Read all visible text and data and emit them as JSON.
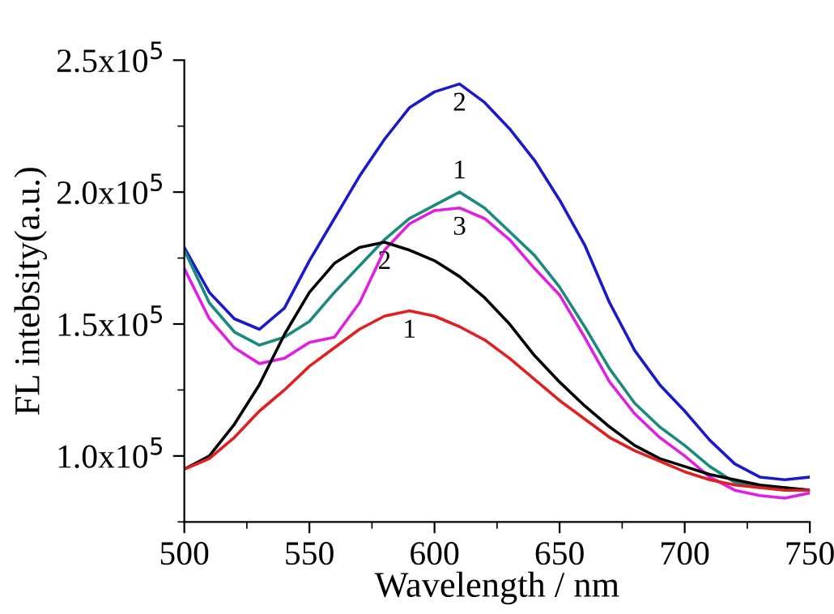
{
  "chart_data": {
    "type": "line",
    "xlabel": "Wavelength / nm",
    "ylabel": "FL intebsity(a.u.)",
    "x": [
      500,
      510,
      520,
      530,
      540,
      550,
      560,
      570,
      580,
      590,
      600,
      610,
      620,
      630,
      640,
      650,
      660,
      670,
      680,
      690,
      700,
      710,
      720,
      730,
      740,
      750
    ],
    "series": [
      {
        "color": "#1a1ac8",
        "values": [
          179000,
          162000,
          152000,
          148000,
          156000,
          174000,
          190000,
          206000,
          220000,
          232000,
          238000,
          241000,
          234000,
          224000,
          212000,
          197000,
          180000,
          158000,
          140000,
          127000,
          117000,
          106000,
          97000,
          92000,
          91000,
          92000
        ]
      },
      {
        "color": "#1a8a7a",
        "values": [
          178000,
          158000,
          147000,
          142000,
          145000,
          151000,
          162000,
          172000,
          182000,
          190000,
          195000,
          200000,
          194000,
          185000,
          176000,
          164000,
          149000,
          133000,
          120000,
          111000,
          104000,
          96000,
          90000,
          88000,
          88000,
          87000
        ]
      },
      {
        "color": "#e020e0",
        "values": [
          171000,
          152000,
          141000,
          135000,
          137000,
          143000,
          145000,
          158000,
          178000,
          188000,
          193000,
          194000,
          190000,
          182000,
          171000,
          161000,
          145000,
          128000,
          116000,
          107000,
          100000,
          92000,
          87000,
          85000,
          84000,
          86000
        ]
      },
      {
        "color": "#000000",
        "values": [
          95000,
          100000,
          112000,
          127000,
          146000,
          162000,
          173000,
          179000,
          181000,
          178000,
          174000,
          168000,
          160000,
          150000,
          138000,
          128000,
          119000,
          111000,
          104000,
          99000,
          96000,
          93000,
          91000,
          89000,
          88000,
          87000
        ]
      },
      {
        "color": "#e02020",
        "values": [
          95000,
          99000,
          107000,
          117000,
          125000,
          134000,
          141000,
          148000,
          153000,
          155000,
          153000,
          149000,
          144000,
          137000,
          129000,
          121000,
          114000,
          107000,
          102000,
          98000,
          94000,
          91000,
          89000,
          88000,
          87000,
          87000
        ]
      }
    ],
    "xlim": [
      500,
      750
    ],
    "xticks": [
      500,
      550,
      600,
      650,
      700,
      750
    ],
    "ylim": [
      75000,
      250000
    ],
    "yticks": [
      {
        "value": 100000,
        "label": "1.0x10$^{5}$"
      },
      {
        "value": 150000,
        "label": "1.5x10$^{5}$"
      },
      {
        "value": 200000,
        "label": "2.0x10$^{5}$"
      },
      {
        "value": 250000,
        "label": "2.5x10$^{5}$"
      }
    ],
    "annotations": [
      {
        "text": "2",
        "x": 610,
        "y": 241000
      },
      {
        "text": "1",
        "x": 610,
        "y": 200000
      },
      {
        "text": "3",
        "x": 610,
        "y": 194000
      },
      {
        "text": "2",
        "x": 580,
        "y": 181000
      },
      {
        "text": "1",
        "x": 590,
        "y": 155000
      }
    ],
    "grid": false,
    "legend": false
  }
}
